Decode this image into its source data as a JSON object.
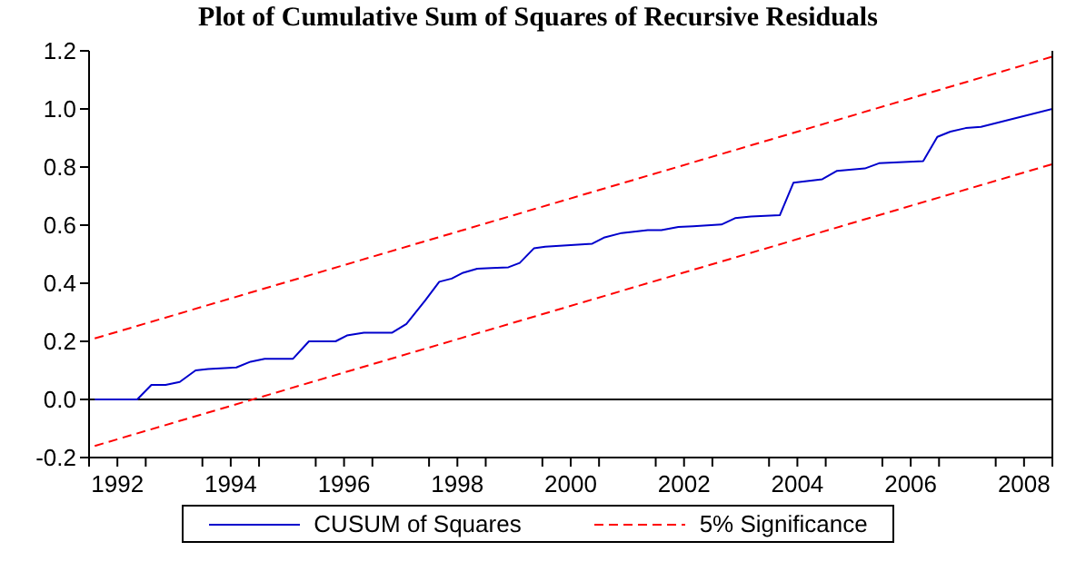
{
  "chart_data": {
    "type": "line",
    "title": "Plot of Cumulative Sum of Squares of Recursive Residuals",
    "xlim": [
      1992,
      2009
    ],
    "xticks": [
      {
        "value": 1992,
        "label": null
      },
      {
        "value": 1992.5,
        "label": "1992"
      },
      {
        "value": 1993,
        "label": null
      },
      {
        "value": 1994,
        "label": null
      },
      {
        "value": 1994.5,
        "label": "1994"
      },
      {
        "value": 1995,
        "label": null
      },
      {
        "value": 1996,
        "label": null
      },
      {
        "value": 1996.5,
        "label": "1996"
      },
      {
        "value": 1997,
        "label": null
      },
      {
        "value": 1998,
        "label": null
      },
      {
        "value": 1998.5,
        "label": "1998"
      },
      {
        "value": 1999,
        "label": null
      },
      {
        "value": 2000,
        "label": null
      },
      {
        "value": 2000.5,
        "label": "2000"
      },
      {
        "value": 2001,
        "label": null
      },
      {
        "value": 2002,
        "label": null
      },
      {
        "value": 2002.5,
        "label": "2002"
      },
      {
        "value": 2003,
        "label": null
      },
      {
        "value": 2004,
        "label": null
      },
      {
        "value": 2004.5,
        "label": "2004"
      },
      {
        "value": 2005,
        "label": null
      },
      {
        "value": 2006,
        "label": null
      },
      {
        "value": 2006.5,
        "label": "2006"
      },
      {
        "value": 2007,
        "label": null
      },
      {
        "value": 2008,
        "label": null
      },
      {
        "value": 2008.5,
        "label": "2008"
      },
      {
        "value": 2009,
        "label": null
      }
    ],
    "ylim": [
      -0.2,
      1.2
    ],
    "yticks": [
      -0.2,
      {
        "value": 0,
        "label": "0.0"
      },
      0.2,
      0.4,
      0.6,
      0.8,
      {
        "value": 1,
        "label": "1.0"
      },
      1.2
    ],
    "grid": false,
    "legend": "bottom",
    "ref_lines": [
      {
        "axis": "y",
        "value": 0,
        "label": null,
        "color": "#000000"
      }
    ],
    "series": [
      {
        "name": "CUSUM of Squares",
        "color": "#0000cc",
        "line_style": "solid",
        "x": [
          1992.1,
          1992.85,
          1993.1,
          1993.35,
          1993.6,
          1993.88,
          1994.1,
          1994.6,
          1994.85,
          1995.1,
          1995.6,
          1995.88,
          1996.35,
          1996.55,
          1996.85,
          1997.35,
          1997.6,
          1997.93,
          1998.18,
          1998.4,
          1998.6,
          1998.85,
          1999.1,
          1999.4,
          1999.6,
          1999.85,
          2000.05,
          2000.88,
          2001.1,
          2001.4,
          2001.86,
          2002.1,
          2002.4,
          2002.66,
          2003.16,
          2003.4,
          2003.68,
          2004.19,
          2004.43,
          2004.94,
          2005.2,
          2005.69,
          2005.94,
          2006.72,
          2006.97,
          2007.2,
          2007.47,
          2007.74,
          2009
        ],
        "values": [
          0,
          0,
          0.05,
          0.05,
          0.06,
          0.1,
          0.105,
          0.11,
          0.13,
          0.14,
          0.14,
          0.2,
          0.2,
          0.22,
          0.23,
          0.23,
          0.26,
          0.34,
          0.405,
          0.416,
          0.436,
          0.45,
          0.452,
          0.455,
          0.47,
          0.52,
          0.526,
          0.536,
          0.558,
          0.573,
          0.583,
          0.583,
          0.594,
          0.596,
          0.602,
          0.624,
          0.63,
          0.634,
          0.746,
          0.758,
          0.787,
          0.795,
          0.813,
          0.82,
          0.904,
          0.922,
          0.934,
          0.938,
          1.0
        ]
      },
      {
        "name": "5% Significance",
        "color": "#ff0000",
        "line_style": "dashed",
        "x": [
          1992.1,
          2009
        ],
        "values": [
          0.21,
          1.18
        ]
      },
      {
        "color": "#ff0000",
        "line_style": "dashed",
        "x": [
          1992.1,
          2009
        ],
        "values": [
          -0.16,
          0.81
        ]
      }
    ]
  }
}
